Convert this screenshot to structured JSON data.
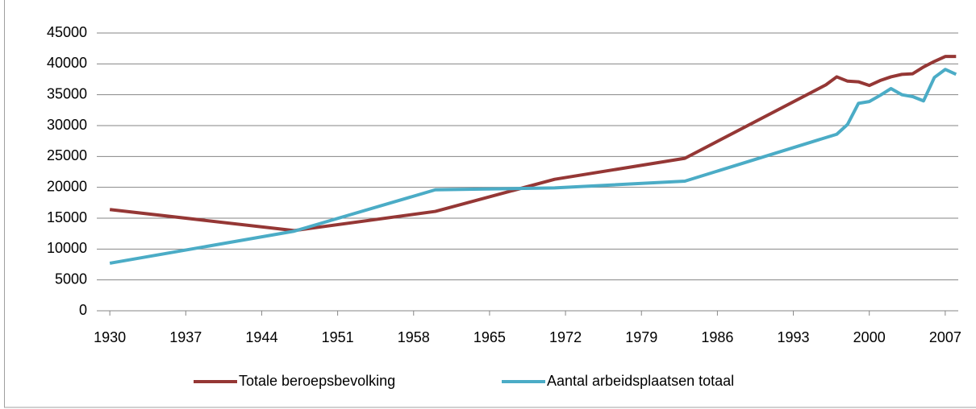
{
  "chart_data": {
    "type": "line",
    "series": [
      {
        "name": "Totale beroepsbevolking",
        "color": "#953735",
        "x": [
          1930,
          1947,
          1960,
          1971,
          1983,
          1996,
          1997,
          1998,
          1999,
          2000,
          2001,
          2002,
          2003,
          2004,
          2005,
          2006,
          2007,
          2008
        ],
        "values": [
          16400,
          13000,
          16100,
          21300,
          24700,
          36600,
          37900,
          37200,
          37100,
          36500,
          37300,
          37900,
          38300,
          38400,
          39500,
          40400,
          41200,
          41200
        ]
      },
      {
        "name": "Aantal arbeidsplaatsen totaal",
        "color": "#4bacc6",
        "x": [
          1930,
          1947,
          1960,
          1971,
          1983,
          1997,
          1998,
          1999,
          2000,
          2001,
          2002,
          2003,
          2004,
          2005,
          2006,
          2007,
          2008
        ],
        "values": [
          7700,
          12900,
          19600,
          19900,
          21000,
          28600,
          30200,
          33600,
          33900,
          34900,
          36000,
          35000,
          34700,
          34000,
          37800,
          39100,
          38300
        ]
      }
    ],
    "xlim": [
      1928.8,
      2008.2
    ],
    "xticks": [
      1930,
      1937,
      1944,
      1951,
      1958,
      1965,
      1972,
      1979,
      1986,
      1993,
      2000,
      2007
    ],
    "ylim": [
      0,
      45000
    ],
    "yticks": [
      0,
      5000,
      10000,
      15000,
      20000,
      25000,
      30000,
      35000,
      40000,
      45000
    ],
    "grid": true,
    "legend": "bottom"
  }
}
